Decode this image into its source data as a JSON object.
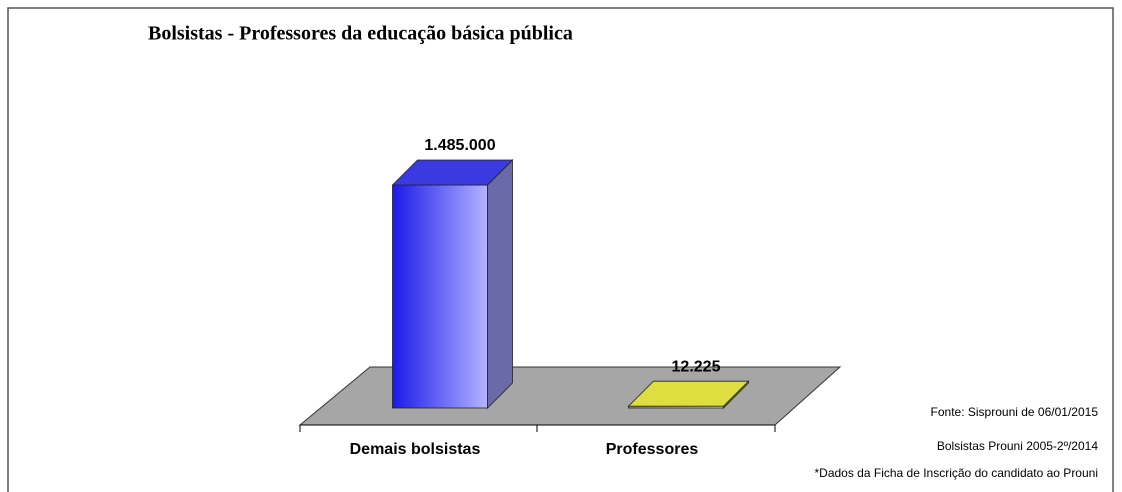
{
  "chart_data": {
    "type": "bar3d",
    "title": "Bolsistas - Professores da educação básica pública",
    "categories": [
      "Demais bolsistas",
      "Professores"
    ],
    "values": [
      1485000,
      12225
    ],
    "value_labels": [
      "1.485.000",
      "12.225"
    ],
    "colors": [
      "#3333ff",
      "#dede40"
    ],
    "annotations": [
      "Fonte: Sisprouni de 06/01/2015",
      "Bolsistas Prouni 2005-2º/2014",
      "*Dados da Ficha de Inscrição do candidato ao Prouni"
    ]
  }
}
